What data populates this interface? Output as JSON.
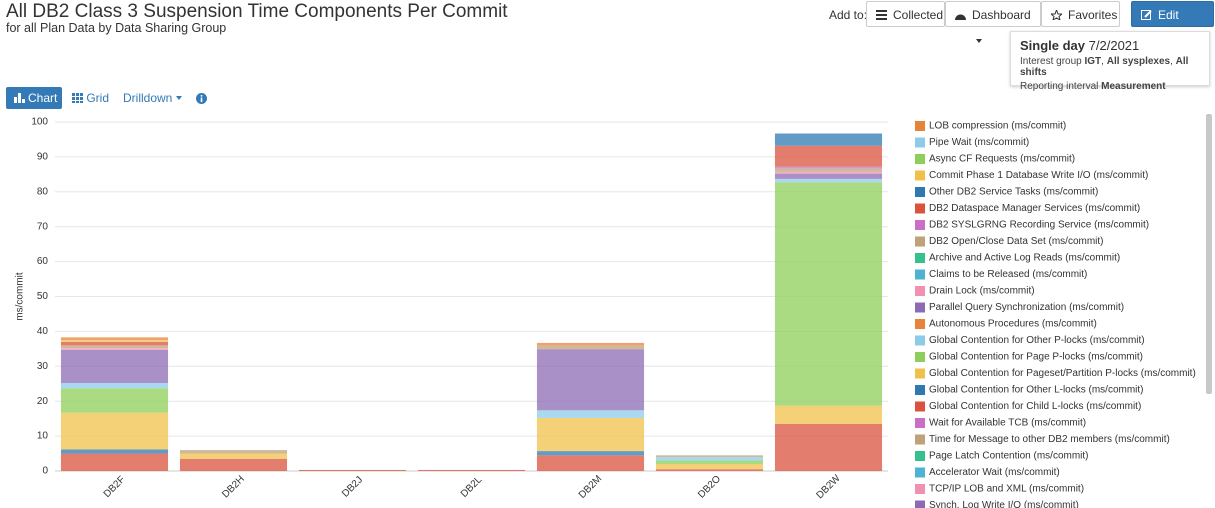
{
  "header": {
    "title": "All DB2 Class 3 Suspension Time Components Per Commit",
    "subtitle": "for all Plan Data by Data Sharing Group",
    "add_to": "Add to:",
    "buttons": [
      "Collected",
      "Dashboard",
      "Favorites",
      "Edit report"
    ]
  },
  "info": {
    "period": "Single day",
    "date": "7/2/2021",
    "interest_label": "Interest group",
    "interest_group": "IGT",
    "sysplexes": "All sysplexes",
    "shifts": "All shifts",
    "interval_label": "Reporting interval",
    "interval": "Measurement"
  },
  "toolbar": {
    "chart": "Chart",
    "grid": "Grid",
    "drilldown": "Drilldown"
  },
  "chart_data": {
    "type": "stacked-bar",
    "y_label": "ms/commit",
    "ylim": [
      0,
      100
    ],
    "yticks": [
      0,
      10,
      20,
      30,
      40,
      50,
      60,
      70,
      80,
      90,
      100
    ],
    "grid": true,
    "categories": [
      "DB2F",
      "DB2H",
      "DB2J",
      "DB2L",
      "DB2M",
      "DB2O",
      "DB2W"
    ],
    "series": [
      {
        "name": "LOB compression (ms/commit)",
        "color": "#e8833a",
        "values": [
          0.8,
          0,
          0,
          0,
          0.8,
          0,
          0
        ]
      },
      {
        "name": "Pipe Wait (ms/commit)",
        "color": "#8ecbe9",
        "values": [
          0,
          0,
          0,
          0,
          0,
          0,
          0
        ]
      },
      {
        "name": "Async CF Requests (ms/commit)",
        "color": "#8dcf5a",
        "values": [
          0,
          0,
          0,
          0,
          0,
          0,
          0
        ]
      },
      {
        "name": "Commit Phase 1 Database Write I/O (ms/commit)",
        "color": "#f0c04a",
        "values": [
          0.5,
          0,
          0,
          0,
          0,
          0,
          0
        ]
      },
      {
        "name": "Other DB2 Service Tasks (ms/commit)",
        "color": "#2e79b2",
        "values": [
          0,
          0,
          0,
          0,
          0,
          0,
          3.5
        ]
      },
      {
        "name": "DB2 Dataspace Manager Services (ms/commit)",
        "color": "#d9533f",
        "values": [
          1,
          0,
          0,
          0,
          0,
          0,
          6
        ]
      },
      {
        "name": "DB2 SYSLGRNG Recording Service (ms/commit)",
        "color": "#c96fc7",
        "values": [
          0,
          0,
          0,
          0,
          0,
          0,
          0.5
        ]
      },
      {
        "name": "DB2 Open/Close Data Set (ms/commit)",
        "color": "#bfa27a",
        "values": [
          0.8,
          1,
          0,
          0,
          1,
          0.5,
          1
        ]
      },
      {
        "name": "Archive and Active Log Reads (ms/commit)",
        "color": "#35c08e",
        "values": [
          0,
          0,
          0,
          0,
          0,
          0,
          0
        ]
      },
      {
        "name": "Claims to be Released (ms/commit)",
        "color": "#4db3d1",
        "values": [
          0,
          0,
          0,
          0,
          0,
          0,
          0
        ]
      },
      {
        "name": "Drain Lock (ms/commit)",
        "color": "#f38fb0",
        "values": [
          0.5,
          0,
          0,
          0,
          0,
          0,
          0.5
        ]
      },
      {
        "name": "Parallel Query Synchronization (ms/commit)",
        "color": "#8c6bb4",
        "values": [
          9.5,
          0,
          0,
          0,
          17.5,
          0,
          1.5
        ]
      },
      {
        "name": "Autonomous Procedures (ms/commit)",
        "color": "#e8833a",
        "values": [
          0,
          0,
          0,
          0,
          0,
          0,
          0
        ]
      },
      {
        "name": "Global Contention for Other P-locks (ms/commit)",
        "color": "#8ecbe9",
        "values": [
          1.5,
          0,
          0,
          0,
          2.2,
          1,
          1
        ]
      },
      {
        "name": "Global Contention for Page P-locks (ms/commit)",
        "color": "#8dcf5a",
        "values": [
          7,
          0,
          0,
          0,
          0,
          1,
          64
        ]
      },
      {
        "name": "Global Contention for Pageset/Partition P-locks (ms/commit)",
        "color": "#f0c04a",
        "values": [
          10.5,
          1.5,
          0,
          0,
          9.5,
          1.5,
          5.2
        ]
      },
      {
        "name": "Global Contention for Other L-locks (ms/commit)",
        "color": "#2e79b2",
        "values": [
          1.2,
          0,
          0,
          0,
          1.2,
          0,
          0
        ]
      },
      {
        "name": "Global Contention for Child L-locks (ms/commit)",
        "color": "#d9533f",
        "values": [
          5,
          3.5,
          0.3,
          0.3,
          4.5,
          0.5,
          13.5
        ]
      },
      {
        "name": "Wait for Available TCB (ms/commit)",
        "color": "#c96fc7",
        "values": [
          0,
          0,
          0,
          0,
          0,
          0,
          0
        ]
      },
      {
        "name": "Time for Message to other DB2 members (ms/commit)",
        "color": "#bfa27a",
        "values": [
          0,
          0,
          0,
          0,
          0,
          0,
          0
        ]
      },
      {
        "name": "Page Latch Contention (ms/commit)",
        "color": "#35c08e",
        "values": [
          0,
          0,
          0,
          0,
          0,
          0,
          0
        ]
      },
      {
        "name": "Accelerator Wait (ms/commit)",
        "color": "#4db3d1",
        "values": [
          0,
          0,
          0,
          0,
          0,
          0,
          0
        ]
      },
      {
        "name": "TCP/IP LOB and XML (ms/commit)",
        "color": "#f38fb0",
        "values": [
          0,
          0,
          0,
          0,
          0,
          0,
          0
        ]
      },
      {
        "name": "Synch. Log Write I/O (ms/commit)",
        "color": "#8c6bb4",
        "values": [
          0,
          0,
          0,
          0,
          0,
          0,
          0
        ]
      }
    ]
  }
}
